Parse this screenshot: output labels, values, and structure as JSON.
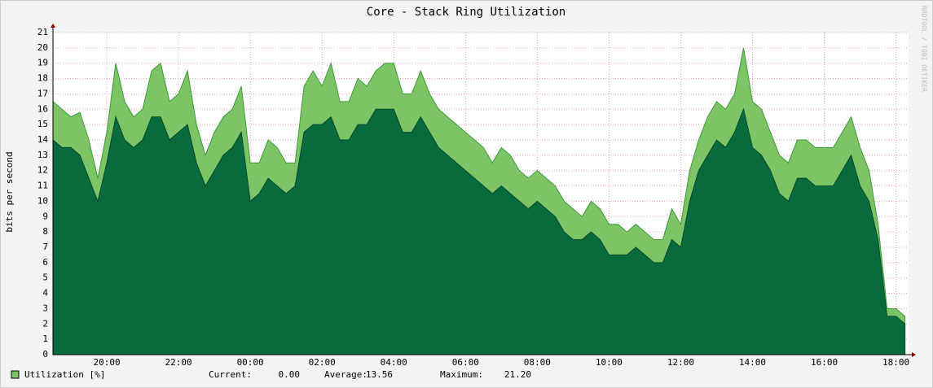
{
  "chart_data": {
    "type": "area",
    "title": "Core - Stack Ring Utilization",
    "y_label": "bits per second",
    "side_note": "RRDTOOL / TOBI OETIKER",
    "x": [
      18.5,
      18.75,
      19,
      19.25,
      19.5,
      19.75,
      20,
      20.25,
      20.5,
      20.75,
      21,
      21.25,
      21.5,
      21.75,
      22,
      22.25,
      22.5,
      22.75,
      23,
      23.25,
      23.5,
      23.75,
      24,
      24.25,
      24.5,
      24.75,
      25,
      25.25,
      25.5,
      25.75,
      26,
      26.25,
      26.5,
      26.75,
      27,
      27.25,
      27.5,
      27.75,
      28,
      28.25,
      28.5,
      28.75,
      29,
      29.25,
      29.5,
      29.75,
      30,
      30.25,
      30.5,
      30.75,
      31,
      31.25,
      31.5,
      31.75,
      32,
      32.25,
      32.5,
      32.75,
      33,
      33.25,
      33.5,
      33.75,
      34,
      34.25,
      34.5,
      34.75,
      35,
      35.25,
      35.5,
      35.75,
      36,
      36.25,
      36.5,
      36.75,
      37,
      37.25,
      37.5,
      37.75,
      38,
      38.25,
      38.5,
      38.75,
      39,
      39.25,
      39.5,
      39.75,
      40,
      40.25,
      40.5,
      40.75,
      41,
      41.25,
      41.5,
      41.75,
      42,
      42.25
    ],
    "series": [
      {
        "name": "Utilization [%]",
        "color": "#7cc466",
        "edge": "#3c9a3a",
        "values": [
          16.5,
          16.0,
          15.5,
          15.8,
          14.0,
          11.5,
          14.5,
          19.0,
          16.5,
          15.5,
          16.0,
          18.5,
          19.0,
          16.5,
          17.0,
          18.5,
          15.0,
          13.0,
          14.5,
          15.5,
          16.0,
          17.5,
          12.5,
          12.5,
          14.0,
          13.5,
          12.5,
          12.5,
          17.5,
          18.5,
          17.5,
          19.0,
          16.5,
          16.5,
          18.0,
          17.5,
          18.5,
          19.0,
          19.0,
          17.0,
          17.0,
          18.5,
          17.0,
          16.0,
          15.5,
          15.0,
          14.5,
          14.0,
          13.5,
          12.5,
          13.5,
          13.0,
          12.0,
          11.5,
          12.0,
          11.5,
          11.0,
          10.0,
          9.5,
          9.0,
          10.0,
          9.5,
          8.5,
          8.5,
          8.0,
          8.5,
          8.0,
          7.5,
          7.5,
          9.5,
          8.5,
          12.0,
          14.0,
          15.5,
          16.5,
          16.0,
          17.0,
          20.0,
          16.5,
          16.0,
          14.5,
          13.0,
          12.5,
          14.0,
          14.0,
          13.5,
          13.5,
          13.5,
          14.5,
          15.5,
          13.5,
          12.0,
          8.5,
          3.0,
          3.0,
          2.5
        ]
      },
      {
        "color": "#076b3d",
        "edge": "#04492a",
        "values": [
          14.0,
          13.5,
          13.5,
          13.0,
          11.5,
          10.0,
          12.5,
          15.5,
          14.0,
          13.5,
          14.0,
          15.5,
          15.5,
          14.0,
          14.5,
          15.0,
          12.5,
          11.0,
          12.0,
          13.0,
          13.5,
          14.5,
          10.0,
          10.5,
          11.5,
          11.0,
          10.5,
          11.0,
          14.5,
          15.0,
          15.0,
          15.5,
          14.0,
          14.0,
          15.0,
          15.0,
          16.0,
          16.0,
          16.0,
          14.5,
          14.5,
          15.5,
          14.5,
          13.5,
          13.0,
          12.5,
          12.0,
          11.5,
          11.0,
          10.5,
          11.0,
          10.5,
          10.0,
          9.5,
          10.0,
          9.5,
          9.0,
          8.0,
          7.5,
          7.5,
          8.0,
          7.5,
          6.5,
          6.5,
          6.5,
          7.0,
          6.5,
          6.0,
          6.0,
          7.5,
          7.0,
          10.0,
          12.0,
          13.0,
          14.0,
          13.5,
          14.5,
          16.0,
          13.5,
          13.0,
          12.0,
          10.5,
          10.0,
          11.5,
          11.5,
          11.0,
          11.0,
          11.0,
          12.0,
          13.0,
          11.0,
          10.0,
          7.5,
          2.5,
          2.5,
          2.0
        ]
      }
    ],
    "xlim": [
      18.5,
      42.35
    ],
    "xticks": [
      {
        "value": 20,
        "label": "20:00"
      },
      {
        "value": 22,
        "label": "22:00"
      },
      {
        "value": 24,
        "label": "00:00"
      },
      {
        "value": 26,
        "label": "02:00"
      },
      {
        "value": 28,
        "label": "04:00"
      },
      {
        "value": 30,
        "label": "06:00"
      },
      {
        "value": 32,
        "label": "08:00"
      },
      {
        "value": 34,
        "label": "10:00"
      },
      {
        "value": 36,
        "label": "12:00"
      },
      {
        "value": 38,
        "label": "14:00"
      },
      {
        "value": 40,
        "label": "16:00"
      },
      {
        "value": 42,
        "label": "18:00"
      }
    ],
    "ylim": [
      0,
      21
    ],
    "yticks": [
      0,
      1,
      2,
      3,
      4,
      5,
      6,
      7,
      8,
      9,
      10,
      11,
      12,
      13,
      14,
      15,
      16,
      17,
      18,
      19,
      20,
      21
    ],
    "grid": true,
    "legend_stats": [
      {
        "label": "Current:",
        "value": "0.00"
      },
      {
        "label": "Average:",
        "value": "13.56"
      },
      {
        "label": "Maximum:",
        "value": "21.20"
      }
    ]
  }
}
